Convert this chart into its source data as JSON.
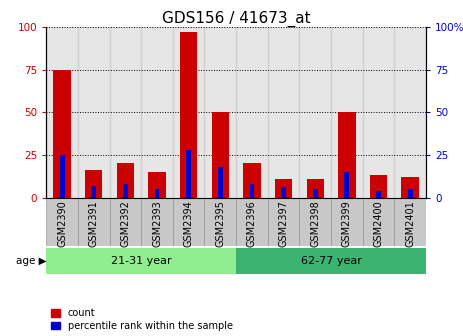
{
  "title": "GDS156 / 41673_at",
  "samples": [
    "GSM2390",
    "GSM2391",
    "GSM2392",
    "GSM2393",
    "GSM2394",
    "GSM2395",
    "GSM2396",
    "GSM2397",
    "GSM2398",
    "GSM2399",
    "GSM2400",
    "GSM2401"
  ],
  "count": [
    75,
    16,
    20,
    15,
    97,
    50,
    20,
    11,
    11,
    50,
    13,
    12
  ],
  "percentile": [
    25,
    7,
    8,
    5,
    28,
    18,
    8,
    6,
    5,
    15,
    4,
    5
  ],
  "groups": [
    {
      "label": "21-31 year",
      "start": 0,
      "end": 6,
      "color": "#90EE90"
    },
    {
      "label": "62-77 year",
      "start": 6,
      "end": 12,
      "color": "#3CB371"
    }
  ],
  "bar_width": 0.55,
  "ylim": [
    0,
    100
  ],
  "yticks": [
    0,
    25,
    50,
    75,
    100
  ],
  "color_count": "#CC0000",
  "color_percentile": "#0000CC",
  "col_bg": "#C8C8C8",
  "age_label": "age",
  "legend_count": "count",
  "legend_percentile": "percentile rank within the sample",
  "title_fontsize": 11,
  "tick_fontsize": 7.5,
  "label_fontsize": 7
}
